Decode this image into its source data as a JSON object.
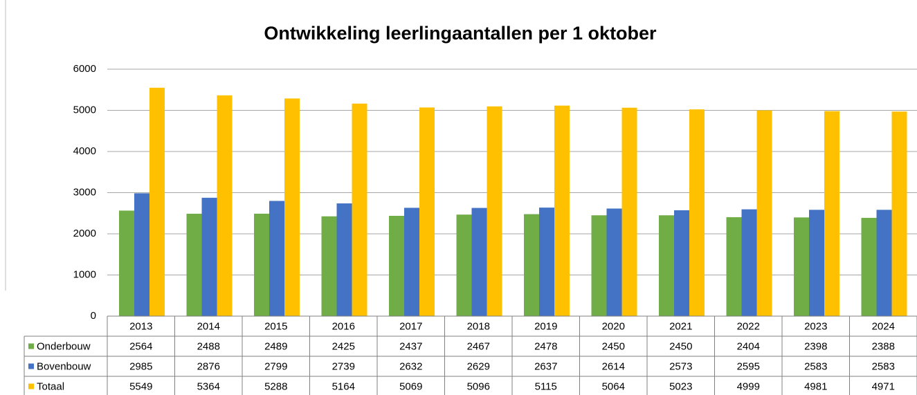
{
  "chart_data": {
    "type": "bar",
    "title": "Ontwikkeling leerlingaantallen per 1 oktober",
    "categories": [
      "2013",
      "2014",
      "2015",
      "2016",
      "2017",
      "2018",
      "2019",
      "2020",
      "2021",
      "2022",
      "2023",
      "2024"
    ],
    "series": [
      {
        "name": "Onderbouw",
        "color": "#70ad47",
        "values": [
          2564,
          2488,
          2489,
          2425,
          2437,
          2467,
          2478,
          2450,
          2450,
          2404,
          2398,
          2388
        ]
      },
      {
        "name": "Bovenbouw",
        "color": "#4472c4",
        "values": [
          2985,
          2876,
          2799,
          2739,
          2632,
          2629,
          2637,
          2614,
          2573,
          2595,
          2583,
          2583
        ]
      },
      {
        "name": "Totaal",
        "color": "#ffc000",
        "values": [
          5549,
          5364,
          5288,
          5164,
          5069,
          5096,
          5115,
          5064,
          5023,
          4999,
          4981,
          4971
        ]
      }
    ],
    "ylim": [
      0,
      6000
    ],
    "yticks": [
      0,
      1000,
      2000,
      3000,
      4000,
      5000,
      6000
    ],
    "grid": true
  }
}
